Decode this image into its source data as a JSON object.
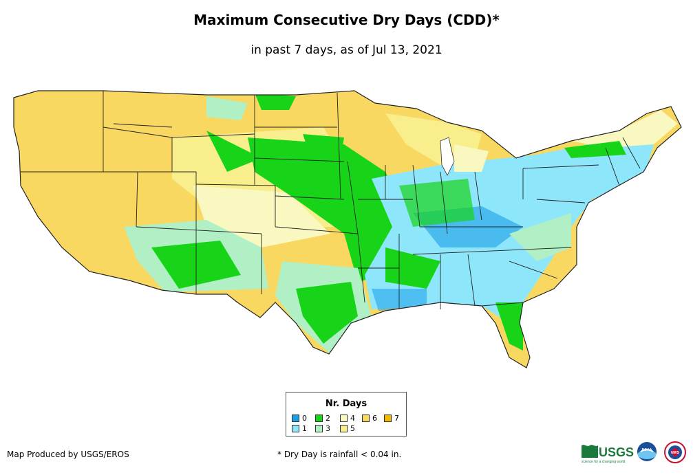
{
  "title": "Maximum Consecutive Dry Days (CDD)*",
  "subtitle": "in past 7 days, as of Jul 13, 2021",
  "legend": {
    "title": "Nr. Days",
    "items": [
      {
        "label": "0",
        "color": "#1a9ee8"
      },
      {
        "label": "1",
        "color": "#8ee6fa"
      },
      {
        "label": "2",
        "color": "#18d418"
      },
      {
        "label": "3",
        "color": "#b0f0c4"
      },
      {
        "label": "4",
        "color": "#f8f8c0"
      },
      {
        "label": "5",
        "color": "#f8ee8c"
      },
      {
        "label": "6",
        "color": "#f8d860"
      },
      {
        "label": "7",
        "color": "#f2b800"
      }
    ]
  },
  "footer": {
    "producer": "Map Produced by USGS/EROS",
    "note": "* Dry Day is rainfall < 0.04 in."
  },
  "logos": {
    "usgs": "USGS",
    "usgs_tagline": "science for a changing world",
    "noaa": "NOAA",
    "nws": "NWS"
  }
}
